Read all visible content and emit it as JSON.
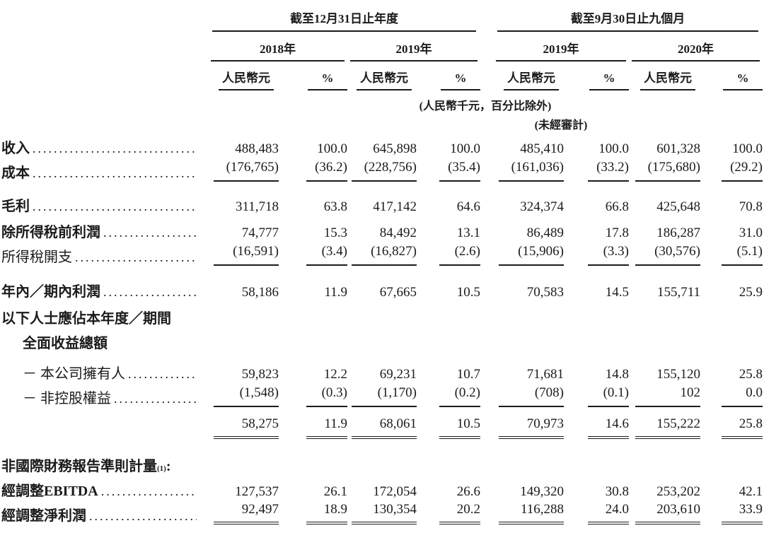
{
  "page": {
    "background": "#ffffff",
    "text_color": "#1b1b1b"
  },
  "table": {
    "groups": [
      {
        "title": "截至12月31日止年度",
        "years": [
          "2018年",
          "2019年"
        ]
      },
      {
        "title": "截至9月30日止九個月",
        "years": [
          "2019年",
          "2020年"
        ]
      }
    ],
    "unit_labels": {
      "amount": "人民幣元",
      "percent": "%"
    },
    "notes": {
      "units": "(人民幣千元，百分比除外)",
      "unaudited": "(未經審計)"
    },
    "rows": [
      {
        "label": "收入",
        "bold": true,
        "leader": true,
        "indent": 0,
        "underline": "none",
        "spacer": 0,
        "values": [
          "488,483",
          "100.0",
          "645,898",
          "100.0",
          "485,410",
          "100.0",
          "601,328",
          "100.0"
        ]
      },
      {
        "label": "成本",
        "bold": true,
        "leader": true,
        "indent": 0,
        "underline": "single",
        "spacer": 0,
        "values": [
          "(176,765)",
          "(36.2)",
          "(228,756)",
          "(35.4)",
          "(161,036)",
          "(33.2)",
          "(175,680)",
          "(29.2)"
        ]
      },
      {
        "label": "毛利",
        "bold": true,
        "leader": true,
        "indent": 0,
        "underline": "none",
        "spacer": 12,
        "values": [
          "311,718",
          "63.8",
          "417,142",
          "64.6",
          "324,374",
          "66.8",
          "425,648",
          "70.8"
        ]
      },
      {
        "label": "除所得稅前利潤",
        "bold": true,
        "leader": true,
        "indent": 0,
        "underline": "none",
        "spacer": 2,
        "values": [
          "74,777",
          "15.3",
          "84,492",
          "13.1",
          "86,489",
          "17.8",
          "186,287",
          "31.0"
        ]
      },
      {
        "label": "所得稅開支",
        "bold": false,
        "leader": true,
        "indent": 0,
        "underline": "single",
        "spacer": 0,
        "values": [
          "(16,591)",
          "(3.4)",
          "(16,827)",
          "(2.6)",
          "(15,906)",
          "(3.3)",
          "(30,576)",
          "(5.1)"
        ]
      },
      {
        "label": "年內／期內利潤",
        "bold": true,
        "leader": true,
        "indent": 0,
        "underline": "none",
        "spacer": 14,
        "values": [
          "58,186",
          "11.9",
          "67,665",
          "10.5",
          "70,583",
          "14.5",
          "155,711",
          "25.9"
        ]
      },
      {
        "label": "以下人士應佔本年度／期間",
        "bold": true,
        "leader": false,
        "indent": 0,
        "underline": "none",
        "spacer": 3,
        "values": [
          "",
          "",
          "",
          "",
          "",
          "",
          "",
          ""
        ]
      },
      {
        "label": "全面收益總額",
        "bold": true,
        "leader": false,
        "indent": 1,
        "underline": "none",
        "spacer": 0,
        "values": [
          "",
          "",
          "",
          "",
          "",
          "",
          "",
          ""
        ]
      },
      {
        "label": "－ 本公司擁有人",
        "bold": false,
        "leader": true,
        "indent": 1,
        "underline": "none",
        "spacer": 8,
        "values": [
          "59,823",
          "12.2",
          "69,231",
          "10.7",
          "71,681",
          "14.8",
          "155,120",
          "25.8"
        ]
      },
      {
        "label": "－ 非控股權益",
        "bold": false,
        "leader": true,
        "indent": 1,
        "underline": "single",
        "spacer": 0,
        "values": [
          "(1,548)",
          "(0.3)",
          "(1,170)",
          "(0.2)",
          "(708)",
          "(0.1)",
          "102",
          "0.0"
        ]
      },
      {
        "label": "",
        "bold": false,
        "leader": false,
        "indent": 0,
        "underline": "double",
        "spacer": 10,
        "values": [
          "58,275",
          "11.9",
          "68,061",
          "10.5",
          "70,973",
          "14.6",
          "155,222",
          "25.8"
        ]
      },
      {
        "label": "非國際財務報告準則計量",
        "sup": "(1)",
        "after": ":",
        "bold": true,
        "leader": false,
        "indent": 0,
        "underline": "none",
        "spacer": 16,
        "values": [
          "",
          "",
          "",
          "",
          "",
          "",
          "",
          ""
        ]
      },
      {
        "label": "經調整EBITDA",
        "bold": true,
        "leader": true,
        "indent": 0,
        "underline": "none",
        "spacer": 0,
        "values": [
          "127,537",
          "26.1",
          "172,054",
          "26.6",
          "149,320",
          "30.8",
          "253,202",
          "42.1"
        ]
      },
      {
        "label": "經調整淨利潤",
        "bold": true,
        "leader": true,
        "indent": 0,
        "underline": "double",
        "spacer": 0,
        "values": [
          "92,497",
          "18.9",
          "130,354",
          "20.2",
          "116,288",
          "24.0",
          "203,610",
          "33.9"
        ]
      }
    ]
  }
}
